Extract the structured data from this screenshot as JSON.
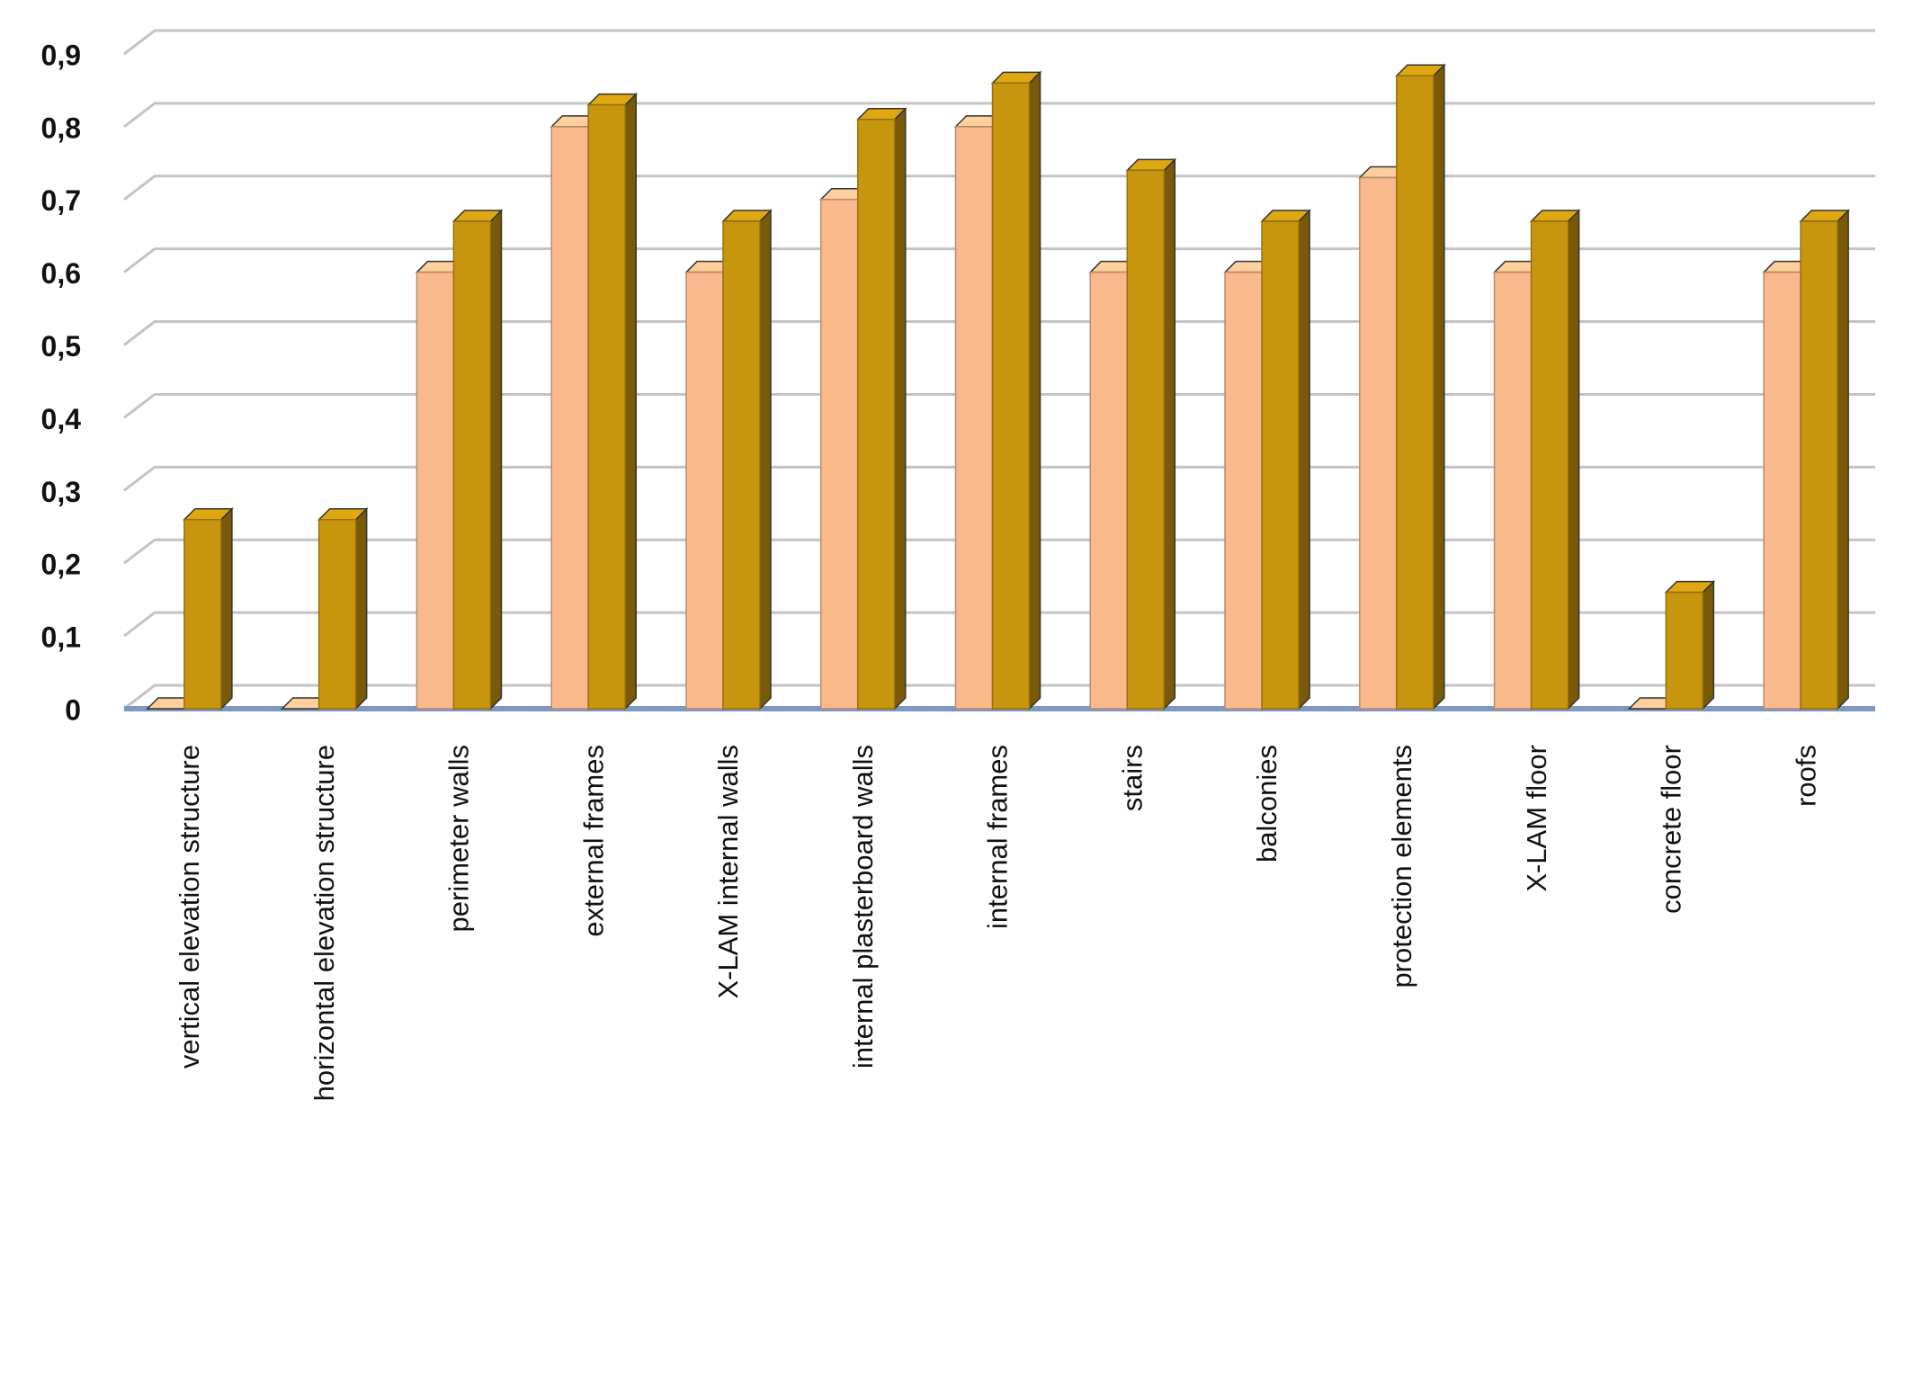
{
  "chart_data": {
    "type": "bar3d",
    "categories": [
      "vertical elevation structure",
      "horizontal elevation structure",
      "perimeter walls",
      "external frames",
      "X-LAM internal walls",
      "internal plasterboard walls",
      "internal frames",
      "stairs",
      "balconies",
      "protection elements",
      "X-LAM floor",
      "concrete floor",
      "roofs"
    ],
    "series": [
      {
        "color": "#f9b98c",
        "values": [
          0,
          0,
          0.6,
          0.8,
          0.6,
          0.7,
          0.8,
          0.6,
          0.6,
          0.73,
          0.6,
          0,
          0.6
        ]
      },
      {
        "color": "#c8960e",
        "values": [
          0.26,
          0.26,
          0.67,
          0.83,
          0.67,
          0.81,
          0.86,
          0.74,
          0.67,
          0.87,
          0.67,
          0.16,
          0.67
        ]
      }
    ],
    "ylim": [
      0,
      0.9
    ],
    "yticks": [
      0,
      {
        "value": 0.1,
        "label": "0,1"
      },
      {
        "value": 0.2,
        "label": "0,2"
      },
      {
        "value": 0.3,
        "label": "0,3"
      },
      {
        "value": 0.4,
        "label": "0,4"
      },
      {
        "value": 0.5,
        "label": "0,5"
      },
      {
        "value": 0.6,
        "label": "0,6"
      },
      {
        "value": 0.7,
        "label": "0,7"
      },
      {
        "value": 0.8,
        "label": "0,8"
      },
      {
        "value": 0.9,
        "label": "0,9"
      }
    ],
    "grid": true
  }
}
